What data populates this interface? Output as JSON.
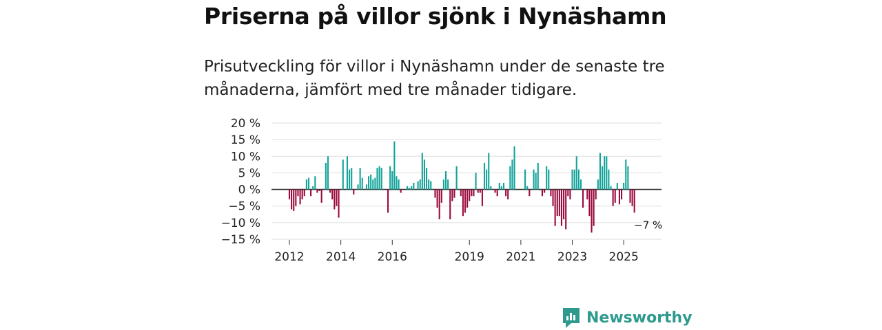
{
  "header": {
    "title": "Priserna på villor sjönk i Nynäshamn",
    "subtitle": "Prisutveckling för villor i Nynäshamn under de senaste tre månaderna, jämfört med tre månader tidigare."
  },
  "brand": {
    "name": "Newsworthy",
    "color": "#2e9a8e"
  },
  "colors": {
    "positive": "#12a399",
    "negative": "#9b0a3e",
    "grid": "#dddddd",
    "zero": "#333333"
  },
  "chart_data": {
    "type": "bar",
    "title": "Priserna på villor sjönk i Nynäshamn",
    "ylabel": "",
    "xlabel": "",
    "ylim": [
      -15,
      20
    ],
    "y_ticks": [
      20,
      15,
      10,
      5,
      0,
      -5,
      -10,
      -15
    ],
    "y_tick_labels": [
      "20 %",
      "15 %",
      "10 %",
      "5 %",
      "0 %",
      "−5 %",
      "−10 %",
      "−15 %"
    ],
    "x_ticks": [
      {
        "label": "2012",
        "index": 0
      },
      {
        "label": "2014",
        "index": 24
      },
      {
        "label": "2016",
        "index": 48
      },
      {
        "label": "2019",
        "index": 84
      },
      {
        "label": "2021",
        "index": 108
      },
      {
        "label": "2023",
        "index": 132
      },
      {
        "label": "2025",
        "index": 156
      }
    ],
    "start": "2012-01",
    "last_value_label": "−7 %",
    "values": [
      -3,
      -6,
      -6.5,
      -5,
      -2,
      -4.5,
      -3,
      -2,
      3,
      3.5,
      -2,
      1,
      4,
      -1,
      -0.5,
      -4,
      0,
      8,
      10,
      -1,
      -3,
      -6,
      -5,
      -8.5,
      0,
      9,
      0,
      10,
      6,
      6.5,
      -1.5,
      0,
      1.5,
      6.5,
      3.5,
      0,
      1.5,
      4,
      4.5,
      3,
      3.5,
      6.5,
      7,
      6.5,
      0,
      0,
      -7,
      7,
      5.5,
      14.5,
      4,
      3,
      -1,
      0,
      0,
      1,
      0.5,
      1,
      2,
      0,
      2.5,
      3,
      11,
      9,
      6.5,
      3,
      2.5,
      0,
      -2.5,
      -5.5,
      -9,
      -4,
      3,
      5.5,
      3,
      -9,
      -3.5,
      -2.5,
      7,
      0,
      -2,
      -8,
      -7,
      -5.5,
      -3.5,
      -2,
      -2,
      5,
      -1,
      -1,
      -5,
      8,
      6,
      11,
      1,
      0,
      -1,
      -2,
      2,
      1,
      2,
      -2,
      -3,
      7,
      9,
      13,
      0,
      0,
      0,
      0,
      6,
      1,
      -2,
      0,
      6,
      5,
      8,
      0,
      -2,
      -1,
      7,
      6,
      -2,
      -5,
      -11,
      -8,
      -8,
      -11,
      -9,
      -12,
      -2,
      -3,
      6,
      6,
      10,
      6,
      3,
      -5.5,
      0,
      -3,
      -8,
      -13,
      -11,
      -3,
      3,
      11,
      7,
      10,
      10,
      6,
      1,
      -5,
      -4,
      2,
      -4.5,
      -3,
      2,
      9,
      7,
      -4,
      -5,
      -7
    ]
  }
}
